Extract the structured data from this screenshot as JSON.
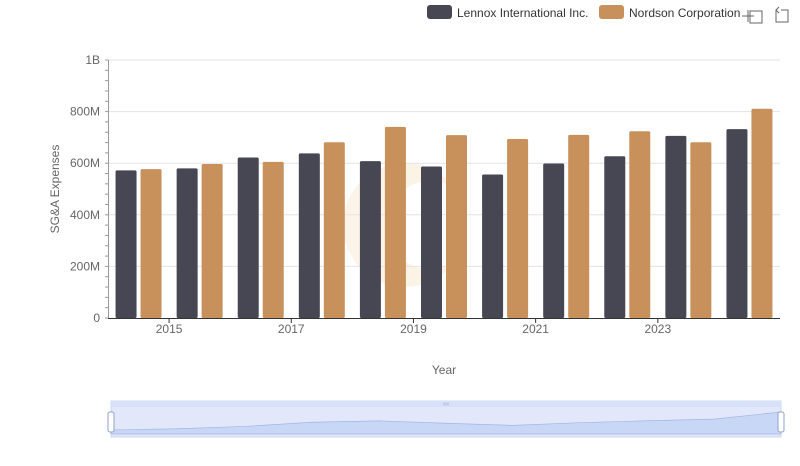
{
  "chart_data": {
    "type": "bar",
    "title": "",
    "xlabel": "Year",
    "ylabel": "SG&A Expenses",
    "ylim": [
      0,
      1000000000
    ],
    "yticks": [
      {
        "value": 0,
        "label": "0"
      },
      {
        "value": 200000000,
        "label": "200M"
      },
      {
        "value": 400000000,
        "label": "400M"
      },
      {
        "value": 600000000,
        "label": "600M"
      },
      {
        "value": 800000000,
        "label": "800M"
      },
      {
        "value": 1000000000,
        "label": "1B"
      }
    ],
    "categories": [
      "2014",
      "2015",
      "2016",
      "2017",
      "2018",
      "2019",
      "2020",
      "2021",
      "2022",
      "2023",
      "2024"
    ],
    "xtick_labels": [
      "2015",
      "2017",
      "2019",
      "2021",
      "2023"
    ],
    "series": [
      {
        "name": "Lennox International Inc.",
        "color": "#474754",
        "values": [
          572000000,
          580000000,
          622000000,
          638000000,
          608000000,
          587000000,
          556000000,
          599000000,
          627000000,
          706000000,
          732000000
        ]
      },
      {
        "name": "Nordson Corporation",
        "color": "#c8915c",
        "values": [
          577000000,
          597000000,
          605000000,
          681000000,
          741000000,
          709000000,
          694000000,
          710000000,
          724000000,
          681000000,
          811000000
        ]
      }
    ],
    "legend_position": "top-right",
    "grid": true
  },
  "toolbar": {
    "icons": [
      "zoom-icon",
      "reset-zoom-icon"
    ]
  }
}
